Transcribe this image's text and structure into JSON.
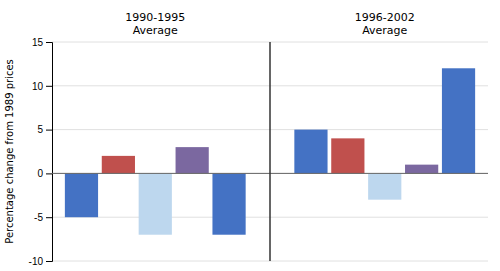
{
  "chart_data": {
    "type": "bar",
    "categories": [
      "1990-1995\nAverage",
      "1996-2002\nAverage"
    ],
    "series": [
      {
        "color": "#4472C4",
        "values": [
          -5,
          5
        ]
      },
      {
        "color": "#C0504D",
        "values": [
          2,
          4
        ]
      },
      {
        "color": "#BDD7EE",
        "values": [
          -7,
          -3
        ]
      },
      {
        "color": "#7B68A0",
        "values": [
          3,
          1
        ]
      },
      {
        "color": "#4472C4",
        "values": [
          -7,
          12
        ]
      }
    ],
    "y_label": "Percentage change from 1989 prices",
    "ylim": [
      -10,
      15
    ],
    "yticks": [
      -10,
      -5,
      0,
      5,
      10,
      15
    ],
    "grid": true
  }
}
